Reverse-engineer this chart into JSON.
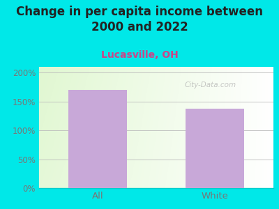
{
  "title": "Change in per capita income between\n2000 and 2022",
  "subtitle": "Lucasville, OH",
  "categories": [
    "All",
    "White"
  ],
  "values": [
    170,
    138
  ],
  "bar_color": "#c8a8d8",
  "title_fontsize": 12,
  "subtitle_fontsize": 10,
  "subtitle_color": "#cc4488",
  "title_color": "#222222",
  "background_color": "#00e8e8",
  "yticks": [
    0,
    50,
    100,
    150,
    200
  ],
  "ytick_labels": [
    "0%",
    "50%",
    "100%",
    "150%",
    "200%"
  ],
  "ylim": [
    0,
    210
  ],
  "watermark": "City-Data.com",
  "axis_label_color": "#777777",
  "tick_label_color": "#777777"
}
